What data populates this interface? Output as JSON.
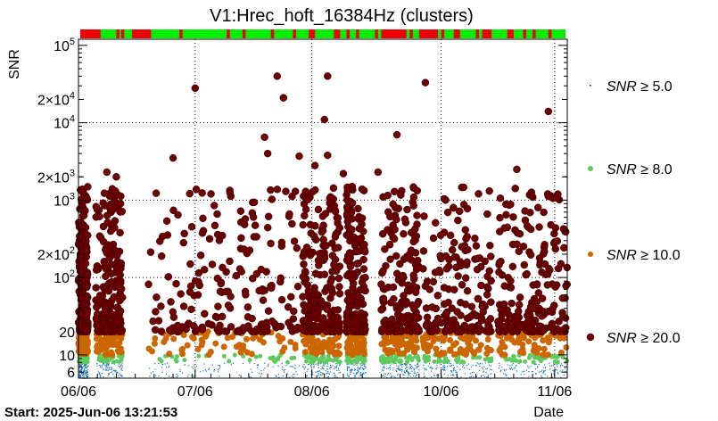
{
  "chart_data": {
    "type": "scatter",
    "title": "V1:Hrec_hoft_16384Hz (clusters)",
    "ylabel": "SNR",
    "xlabel": "Date",
    "start_label": "Start: 2025-Jun-06 13:21:53",
    "x_axis": {
      "range_days": [
        0,
        155
      ],
      "ticks": [
        {
          "day": 0,
          "label": "06/06"
        },
        {
          "day": 37,
          "label": "07/06"
        },
        {
          "day": 74,
          "label": "08/06"
        },
        {
          "day": 115,
          "label": "10/06"
        },
        {
          "day": 151,
          "label": "11/06"
        }
      ]
    },
    "y_axis": {
      "scale": "log",
      "range": [
        5,
        120000
      ],
      "ticks": [
        {
          "value": 6,
          "label": "6"
        },
        {
          "value": 10,
          "label": "10"
        },
        {
          "value": 20,
          "label": "20"
        },
        {
          "value": 100,
          "label": "10²",
          "base": "10",
          "exp": "2"
        },
        {
          "value": 200,
          "label": "2×10²",
          "base": "2×10",
          "exp": "2"
        },
        {
          "value": 1000,
          "label": "10³",
          "base": "10",
          "exp": "3"
        },
        {
          "value": 2000,
          "label": "2×10³",
          "base": "2×10",
          "exp": "3"
        },
        {
          "value": 10000,
          "label": "10⁴",
          "base": "10",
          "exp": "4"
        },
        {
          "value": 20000,
          "label": "2×10⁴",
          "base": "2×10",
          "exp": "4"
        },
        {
          "value": 100000,
          "label": "10⁵",
          "base": "10",
          "exp": "5"
        }
      ]
    },
    "grid": true,
    "legend_position": "right",
    "series": [
      {
        "name": "SNR ≥ 5.0",
        "threshold": "5.0",
        "color": "#1f77b4",
        "marker": "dot",
        "range": [
          5,
          8
        ]
      },
      {
        "name": "SNR ≥ 8.0",
        "threshold": "8.0",
        "color": "#5ec95e",
        "marker": "circle",
        "range": [
          8,
          10
        ]
      },
      {
        "name": "SNR ≥ 10.0",
        "threshold": "10.0",
        "color": "#cc6600",
        "marker": "circle",
        "range": [
          10,
          20
        ]
      },
      {
        "name": "SNR ≥ 20.0",
        "threshold": "20.0",
        "color": "#6b0000",
        "marker": "circle",
        "range": [
          20,
          1500
        ]
      }
    ],
    "active_segments_days": [
      [
        0,
        3
      ],
      [
        5.5,
        14
      ],
      [
        22,
        70
      ],
      [
        71,
        83
      ],
      [
        85,
        91
      ],
      [
        96,
        108
      ],
      [
        109,
        131
      ],
      [
        133,
        155
      ]
    ],
    "outliers": [
      {
        "day": 0.3,
        "snr": 450
      },
      {
        "day": 0.5,
        "snr": 140
      },
      {
        "day": 1,
        "snr": 90
      },
      {
        "day": 9,
        "snr": 2300
      },
      {
        "day": 12,
        "snr": 2000
      },
      {
        "day": 30,
        "snr": 3500
      },
      {
        "day": 37,
        "snr": 28000
      },
      {
        "day": 59,
        "snr": 6500
      },
      {
        "day": 60,
        "snr": 4000
      },
      {
        "day": 63,
        "snr": 40000
      },
      {
        "day": 65,
        "snr": 21000
      },
      {
        "day": 70,
        "snr": 3700
      },
      {
        "day": 75,
        "snr": 2800
      },
      {
        "day": 79,
        "snr": 40000
      },
      {
        "day": 78,
        "snr": 11000
      },
      {
        "day": 79,
        "snr": 3800
      },
      {
        "day": 84,
        "snr": 2200
      },
      {
        "day": 95,
        "snr": 2300
      },
      {
        "day": 101,
        "snr": 7000
      },
      {
        "day": 110,
        "snr": 33000
      },
      {
        "day": 139,
        "snr": 2500
      },
      {
        "day": 149,
        "snr": 14000
      }
    ],
    "status_bar": {
      "colors": {
        "active": "#00ee00",
        "inactive": "#ee0000"
      },
      "inactive_segments_days": [
        [
          0,
          7
        ],
        [
          12,
          13
        ],
        [
          13.5,
          14.5
        ],
        [
          17,
          23
        ],
        [
          32,
          33
        ],
        [
          47,
          48
        ],
        [
          52,
          53
        ],
        [
          61,
          62
        ],
        [
          68,
          69
        ],
        [
          73,
          75
        ],
        [
          81,
          83
        ],
        [
          85,
          86
        ],
        [
          88,
          89
        ],
        [
          94,
          95
        ],
        [
          96,
          104
        ],
        [
          105,
          106
        ],
        [
          108,
          114
        ],
        [
          115,
          116
        ],
        [
          119,
          121
        ],
        [
          126,
          127
        ],
        [
          128,
          131
        ],
        [
          136,
          138
        ],
        [
          141,
          142
        ],
        [
          144,
          145
        ],
        [
          149,
          150
        ]
      ]
    }
  }
}
